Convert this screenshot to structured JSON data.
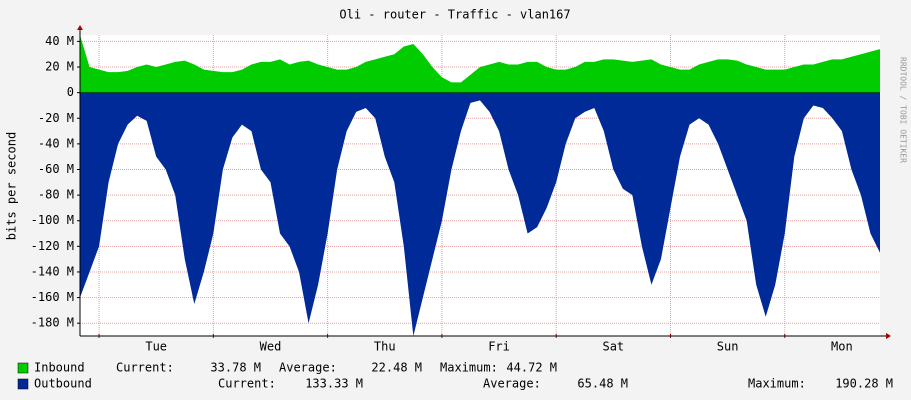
{
  "chart_data": {
    "type": "area",
    "title": "Oli - router - Traffic - vlan167",
    "y_label": "bits per second",
    "watermark": "RRDTOOL / TOBI OETIKER",
    "x": [
      0,
      2,
      4,
      6,
      8,
      10,
      12,
      14,
      16,
      18,
      20,
      22,
      24,
      26,
      28,
      30,
      32,
      34,
      36,
      38,
      40,
      42,
      44,
      46,
      48,
      50,
      52,
      54,
      56,
      58,
      60,
      62,
      64,
      66,
      68,
      70,
      72,
      74,
      76,
      78,
      80,
      82,
      84,
      86,
      88,
      90,
      92,
      94,
      96,
      98,
      100,
      102,
      104,
      106,
      108,
      110,
      112,
      114,
      116,
      118,
      120,
      122,
      124,
      126,
      128,
      130,
      132,
      134,
      136,
      138,
      140,
      142,
      144,
      146,
      148,
      150,
      152,
      154,
      156,
      158,
      160,
      162,
      164,
      166,
      168
    ],
    "xlim": [
      0,
      168
    ],
    "xticks": [
      {
        "value": 16,
        "label": "Tue"
      },
      {
        "value": 40,
        "label": "Wed"
      },
      {
        "value": 64,
        "label": "Thu"
      },
      {
        "value": 88,
        "label": "Fri"
      },
      {
        "value": 112,
        "label": "Sat"
      },
      {
        "value": 136,
        "label": "Sun"
      },
      {
        "value": 160,
        "label": "Mon"
      }
    ],
    "xgrid": [
      4,
      28,
      52,
      76,
      100,
      124,
      148
    ],
    "ylim": [
      -190,
      45
    ],
    "yticks": [
      {
        "value": 40,
        "label": "40 M"
      },
      {
        "value": 20,
        "label": "20 M"
      },
      0,
      {
        "value": -20,
        "label": "-20 M"
      },
      {
        "value": -40,
        "label": "-40 M"
      },
      {
        "value": -60,
        "label": "-60 M"
      },
      {
        "value": -80,
        "label": "-80 M"
      },
      {
        "value": -100,
        "label": "-100 M"
      },
      {
        "value": -120,
        "label": "-120 M"
      },
      {
        "value": -140,
        "label": "-140 M"
      },
      {
        "value": -160,
        "label": "-160 M"
      },
      {
        "value": -180,
        "label": "-180 M"
      }
    ],
    "grid": true,
    "series": [
      {
        "name": "Inbound",
        "color": "#00cc00",
        "values": [
          45,
          20,
          18,
          16,
          16,
          17,
          20,
          22,
          20,
          22,
          24,
          25,
          22,
          18,
          17,
          16,
          16,
          18,
          22,
          24,
          24,
          26,
          22,
          24,
          25,
          22,
          20,
          18,
          18,
          20,
          24,
          26,
          28,
          30,
          36,
          38,
          30,
          20,
          12,
          8,
          8,
          14,
          20,
          22,
          24,
          22,
          22,
          24,
          24,
          20,
          18,
          18,
          20,
          24,
          24,
          26,
          26,
          25,
          24,
          25,
          26,
          22,
          20,
          18,
          18,
          22,
          24,
          26,
          26,
          25,
          22,
          20,
          18,
          18,
          18,
          20,
          22,
          22,
          24,
          26,
          26,
          28,
          30,
          32,
          34
        ],
        "stats": [
          {
            "label": "Current:",
            "value": "33.78 M"
          },
          {
            "label": "Average:",
            "value": "22.48 M"
          },
          {
            "label": "Maximum:",
            "value": "44.72 M"
          }
        ]
      },
      {
        "name": "Outbound",
        "color": "#002a97",
        "values": [
          -160,
          -140,
          -120,
          -70,
          -40,
          -25,
          -18,
          -22,
          -50,
          -60,
          -80,
          -130,
          -165,
          -140,
          -110,
          -60,
          -35,
          -25,
          -30,
          -60,
          -70,
          -110,
          -120,
          -140,
          -180,
          -150,
          -110,
          -60,
          -30,
          -15,
          -12,
          -20,
          -50,
          -70,
          -120,
          -190,
          -160,
          -130,
          -100,
          -60,
          -30,
          -8,
          -6,
          -15,
          -30,
          -60,
          -80,
          -110,
          -105,
          -90,
          -70,
          -40,
          -20,
          -15,
          -12,
          -30,
          -60,
          -75,
          -80,
          -120,
          -150,
          -130,
          -90,
          -50,
          -25,
          -20,
          -25,
          -40,
          -60,
          -80,
          -100,
          -150,
          -175,
          -150,
          -110,
          -50,
          -20,
          -10,
          -12,
          -20,
          -30,
          -60,
          -80,
          -110,
          -125
        ],
        "stats": [
          {
            "label": "Current:",
            "value": "133.33 M"
          },
          {
            "label": "Average:",
            "value": "65.48 M"
          },
          {
            "label": "Maximum:",
            "value": "190.28 M"
          }
        ]
      }
    ]
  }
}
